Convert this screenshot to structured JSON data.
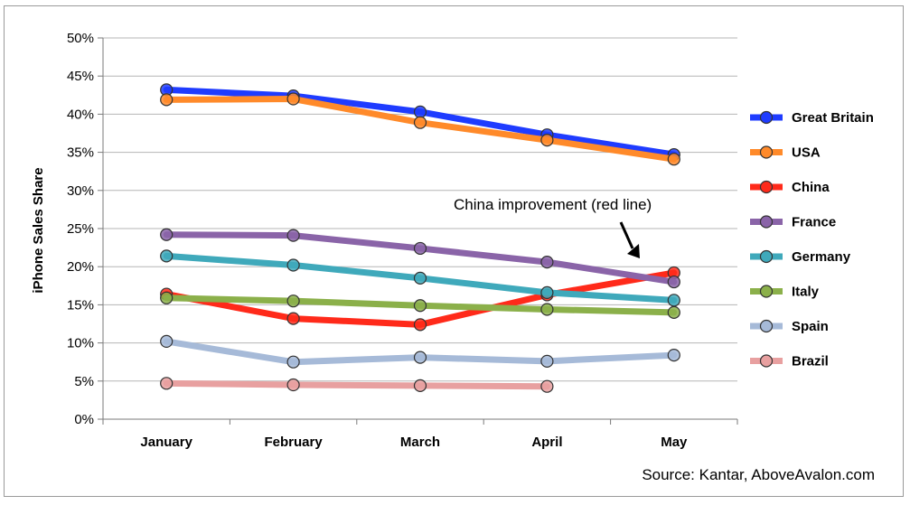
{
  "chart_data": {
    "type": "line",
    "categories": [
      "January",
      "February",
      "March",
      "April",
      "May"
    ],
    "ylabel": "iPhone Sales Share",
    "ylim": [
      0,
      50
    ],
    "yticks": [
      "0%",
      "5%",
      "10%",
      "15%",
      "20%",
      "25%",
      "30%",
      "35%",
      "40%",
      "45%",
      "50%"
    ],
    "grid": true,
    "legend": "right",
    "series": [
      {
        "name": "Great Britain",
        "color": "#1f3cff",
        "values": [
          43.2,
          42.4,
          40.3,
          37.3,
          34.7
        ]
      },
      {
        "name": "USA",
        "color": "#ff8a2a",
        "values": [
          41.9,
          42.0,
          38.9,
          36.6,
          34.1
        ]
      },
      {
        "name": "China",
        "color": "#ff2a1a",
        "values": [
          16.4,
          13.2,
          12.4,
          16.3,
          19.2
        ]
      },
      {
        "name": "France",
        "color": "#8a64a8",
        "values": [
          24.2,
          24.1,
          22.4,
          20.6,
          18.0
        ]
      },
      {
        "name": "Germany",
        "color": "#3fa9bb",
        "values": [
          21.4,
          20.2,
          18.5,
          16.6,
          15.6
        ]
      },
      {
        "name": "Italy",
        "color": "#8bb04a",
        "values": [
          15.9,
          15.5,
          14.9,
          14.4,
          14.0
        ]
      },
      {
        "name": "Spain",
        "color": "#a6bad8",
        "values": [
          10.2,
          7.5,
          8.1,
          7.6,
          8.4
        ]
      },
      {
        "name": "Brazil",
        "color": "#e8a0a0",
        "values": [
          4.7,
          4.5,
          4.4,
          4.3,
          null
        ]
      }
    ],
    "annotation": "China improvement (red line)",
    "source": "Source: Kantar, AboveAvalon.com"
  }
}
